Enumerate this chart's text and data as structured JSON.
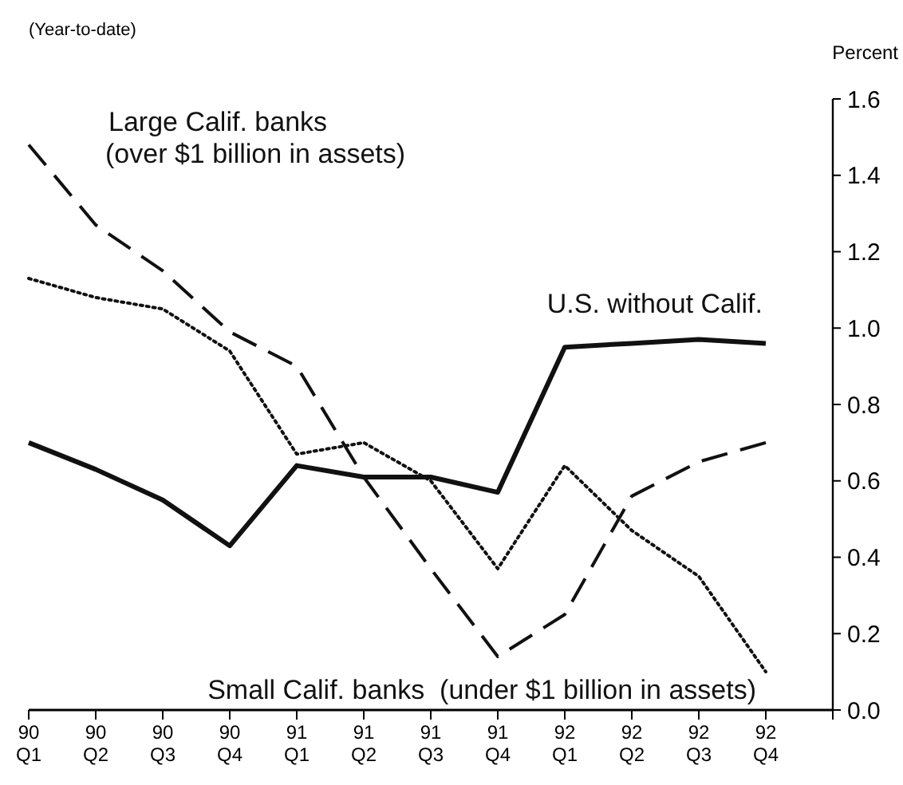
{
  "chart_data": {
    "type": "line",
    "subtitle": "(Year-to-date)",
    "ylabel": "Percent",
    "categories": [
      "90\nQ1",
      "90\nQ2",
      "90\nQ3",
      "90\nQ4",
      "91\nQ1",
      "91\nQ2",
      "91\nQ3",
      "91\nQ4",
      "92\nQ1",
      "92\nQ2",
      "92\nQ3",
      "92\nQ4"
    ],
    "series": [
      {
        "name": "Large Calif. banks\n(over $1 billion in assets)",
        "color": "#111111",
        "line_style": "dashed",
        "values": [
          1.48,
          1.27,
          1.15,
          0.99,
          0.9,
          0.61,
          0.37,
          0.14,
          0.25,
          0.56,
          0.65,
          0.7
        ]
      },
      {
        "name": "U.S. without Calif.",
        "color": "#111111",
        "line_style": "solid",
        "values": [
          0.7,
          0.63,
          0.55,
          0.43,
          0.64,
          0.61,
          0.61,
          0.57,
          0.95,
          0.96,
          0.97,
          0.96
        ]
      },
      {
        "name": "Small Calif. banks  (under $1 billion in assets)",
        "color": "#111111",
        "line_style": "dotted",
        "values": [
          1.13,
          1.08,
          1.05,
          0.94,
          0.67,
          0.7,
          0.6,
          0.37,
          0.64,
          0.47,
          0.35,
          0.1
        ]
      }
    ],
    "ylim": [
      0,
      1.6
    ],
    "yticks": [
      {
        "value": 0,
        "label": "0.0"
      },
      0.2,
      0.4,
      0.6,
      0.8,
      {
        "value": 1,
        "label": "1.0"
      },
      1.2,
      1.4,
      1.6
    ],
    "grid": false
  }
}
